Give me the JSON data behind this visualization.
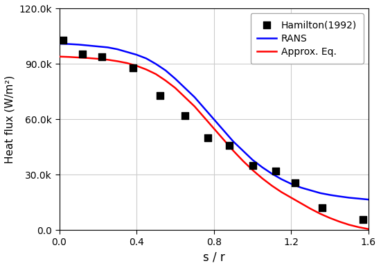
{
  "hamilton_x": [
    0.02,
    0.12,
    0.22,
    0.38,
    0.52,
    0.65,
    0.77,
    0.88,
    1.0,
    1.12,
    1.22,
    1.36,
    1.57
  ],
  "hamilton_y": [
    103000,
    95500,
    94000,
    88000,
    73000,
    62000,
    50000,
    46000,
    35000,
    32000,
    25500,
    12000,
    5500
  ],
  "rans_x": [
    0.0,
    0.05,
    0.1,
    0.15,
    0.2,
    0.25,
    0.3,
    0.35,
    0.4,
    0.45,
    0.5,
    0.55,
    0.6,
    0.65,
    0.7,
    0.75,
    0.8,
    0.85,
    0.9,
    0.95,
    1.0,
    1.05,
    1.1,
    1.15,
    1.2,
    1.25,
    1.3,
    1.35,
    1.4,
    1.45,
    1.5,
    1.55,
    1.6
  ],
  "rans_y": [
    101000,
    100800,
    100500,
    100000,
    99500,
    99000,
    98000,
    96500,
    95000,
    93000,
    90000,
    86500,
    82000,
    77000,
    72000,
    66000,
    60000,
    54000,
    48000,
    43000,
    38000,
    34000,
    30500,
    27500,
    25000,
    23000,
    21500,
    20000,
    19000,
    18200,
    17500,
    17000,
    16500
  ],
  "approx_x": [
    0.0,
    0.05,
    0.1,
    0.15,
    0.2,
    0.25,
    0.3,
    0.35,
    0.4,
    0.45,
    0.5,
    0.55,
    0.6,
    0.65,
    0.7,
    0.75,
    0.8,
    0.85,
    0.9,
    0.95,
    1.0,
    1.05,
    1.1,
    1.15,
    1.2,
    1.25,
    1.3,
    1.35,
    1.4,
    1.45,
    1.5,
    1.55,
    1.6
  ],
  "approx_y": [
    94000,
    93800,
    93500,
    93200,
    92800,
    92300,
    91500,
    90500,
    89000,
    87000,
    84500,
    81000,
    77000,
    72000,
    67000,
    61000,
    55000,
    49000,
    43000,
    37500,
    32500,
    28000,
    24000,
    20500,
    17500,
    14500,
    11500,
    8800,
    6500,
    4500,
    2800,
    1500,
    500
  ],
  "xlabel": "s / r",
  "ylabel": "Heat flux (W/m²)",
  "xlim": [
    0.0,
    1.6
  ],
  "ylim": [
    0.0,
    120000
  ],
  "xticks": [
    0.0,
    0.4,
    0.8,
    1.2,
    1.6
  ],
  "yticks": [
    0,
    30000,
    60000,
    90000,
    120000
  ],
  "ytick_labels": [
    "0.0",
    "30.0k",
    "60.0k",
    "90.0k",
    "120.0k"
  ],
  "rans_color": "#0000ff",
  "approx_color": "#ff0000",
  "scatter_color": "#000000",
  "grid_color": "#cccccc",
  "background_color": "#ffffff",
  "legend_labels": [
    "Hamilton(1992)",
    "RANS",
    "Approx. Eq."
  ]
}
